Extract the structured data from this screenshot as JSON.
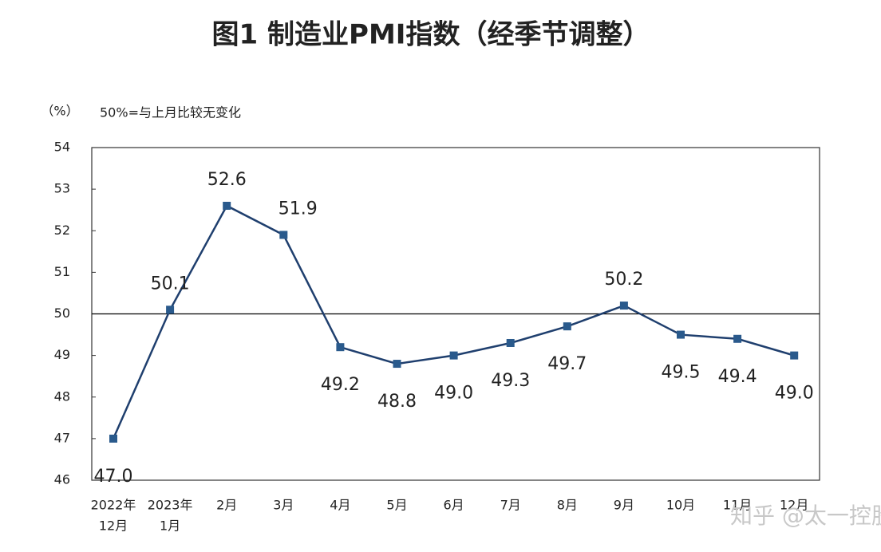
{
  "chart_data": {
    "type": "line",
    "title": "图1 制造业PMI指数（经季节调整）",
    "y_unit": "（%）",
    "annotation": "50%=与上月比较无变化",
    "watermark": "知乎 @太一控股集团",
    "categories": [
      [
        "2022年",
        "12月"
      ],
      [
        "2023年",
        "1月"
      ],
      [
        "2月"
      ],
      [
        "3月"
      ],
      [
        "4月"
      ],
      [
        "5月"
      ],
      [
        "6月"
      ],
      [
        "7月"
      ],
      [
        "8月"
      ],
      [
        "9月"
      ],
      [
        "10月"
      ],
      [
        "11月"
      ],
      [
        "12月"
      ]
    ],
    "series": [
      {
        "name": "制造业PMI",
        "color": "#1f3f6e",
        "values": [
          47.0,
          50.1,
          52.6,
          51.9,
          49.2,
          48.8,
          49.0,
          49.3,
          49.7,
          50.2,
          49.5,
          49.4,
          49.0
        ],
        "value_labels": [
          "47.0",
          "50.1",
          "52.6",
          "51.9",
          "49.2",
          "48.8",
          "49.0",
          "49.3",
          "49.7",
          "50.2",
          "49.5",
          "49.4",
          "49.0"
        ]
      }
    ],
    "ylim": [
      46,
      54
    ],
    "yticks": [
      46,
      47,
      48,
      49,
      50,
      51,
      52,
      53,
      54
    ],
    "reference_line": 50,
    "grid": false
  }
}
